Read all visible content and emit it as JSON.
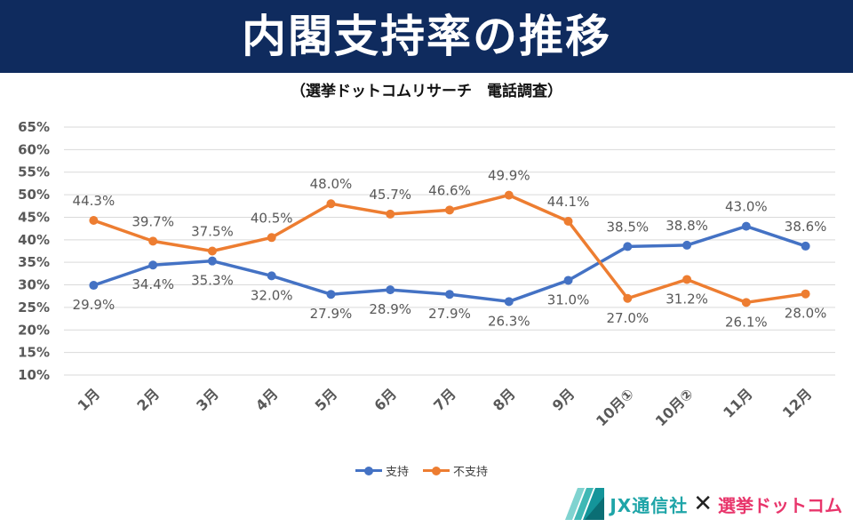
{
  "header": {
    "title": "内閣支持率の推移",
    "subtitle": "（選挙ドットコムリサーチ　電話調査）"
  },
  "colors": {
    "banner": "#0f2b5e",
    "support": "#4472c4",
    "nonsupport": "#ed7d31"
  },
  "legend": {
    "support": "支持",
    "nonsupport": "不支持"
  },
  "footer": {
    "jx": "JX通信社",
    "cross": "✕",
    "senkyo": "選挙ドットコム"
  },
  "chart_data": {
    "type": "line",
    "categories": [
      "1月",
      "2月",
      "3月",
      "4月",
      "5月",
      "6月",
      "7月",
      "8月",
      "9月",
      "10月①",
      "10月②",
      "11月",
      "12月"
    ],
    "ylim": [
      10,
      65
    ],
    "yticks": [
      "10%",
      "15%",
      "20%",
      "25%",
      "30%",
      "35%",
      "40%",
      "45%",
      "50%",
      "55%",
      "60%",
      "65%"
    ],
    "grid": true,
    "legend_position": "bottom",
    "series": [
      {
        "name": "支持",
        "values": [
          29.9,
          34.4,
          35.3,
          32.0,
          27.9,
          28.9,
          27.9,
          26.3,
          31.0,
          38.5,
          38.8,
          43.0,
          38.6
        ],
        "labels": [
          "29.9%",
          "34.4%",
          "35.3%",
          "32.0%",
          "27.9%",
          "28.9%",
          "27.9%",
          "26.3%",
          "31.0%",
          "38.5%",
          "38.8%",
          "43.0%",
          "38.6%"
        ]
      },
      {
        "name": "不支持",
        "values": [
          44.3,
          39.7,
          37.5,
          40.5,
          48.0,
          45.7,
          46.6,
          49.9,
          44.1,
          27.0,
          31.2,
          26.1,
          28.0
        ],
        "labels": [
          "44.3%",
          "39.7%",
          "37.5%",
          "40.5%",
          "48.0%",
          "45.7%",
          "46.6%",
          "49.9%",
          "44.1%",
          "27.0%",
          "31.2%",
          "26.1%",
          "28.0%"
        ]
      }
    ]
  }
}
